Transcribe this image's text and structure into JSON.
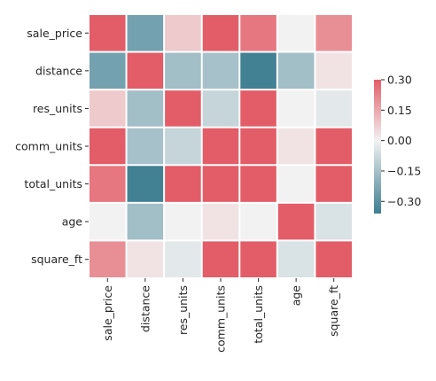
{
  "chart_data": {
    "type": "heatmap",
    "title": "",
    "xlabel": "",
    "ylabel": "",
    "row_labels": [
      "sale_price",
      "distance",
      "res_units",
      "comm_units",
      "total_units",
      "age",
      "square_ft"
    ],
    "col_labels": [
      "sale_price",
      "distance",
      "res_units",
      "comm_units",
      "total_units",
      "age",
      "square_ft"
    ],
    "values": [
      [
        0.3,
        -0.25,
        0.08,
        0.3,
        0.25,
        0.0,
        0.2
      ],
      [
        -0.25,
        0.3,
        -0.16,
        -0.15,
        -0.35,
        -0.16,
        0.03
      ],
      [
        0.08,
        -0.16,
        0.3,
        -0.09,
        0.3,
        0.0,
        -0.03
      ],
      [
        0.3,
        -0.15,
        -0.09,
        0.3,
        0.3,
        0.03,
        0.3
      ],
      [
        0.25,
        -0.35,
        0.3,
        0.3,
        0.3,
        0.0,
        0.3
      ],
      [
        0.0,
        -0.16,
        0.0,
        0.03,
        0.0,
        0.3,
        -0.05
      ],
      [
        0.2,
        0.03,
        -0.03,
        0.3,
        0.3,
        -0.05,
        0.3
      ]
    ],
    "vmin": -0.36,
    "vmax": 0.3,
    "colorbar": {
      "ticks": [
        0.3,
        0.15,
        0.0,
        -0.15,
        -0.3
      ],
      "tick_labels": [
        "0.30",
        "0.15",
        "0.00",
        "−0.15",
        "−0.30"
      ],
      "position": "right"
    },
    "colormap": {
      "negative_color": "#3d7d91",
      "center_color": "#f2f2f2",
      "positive_color": "#e35d68"
    },
    "grid": true
  }
}
